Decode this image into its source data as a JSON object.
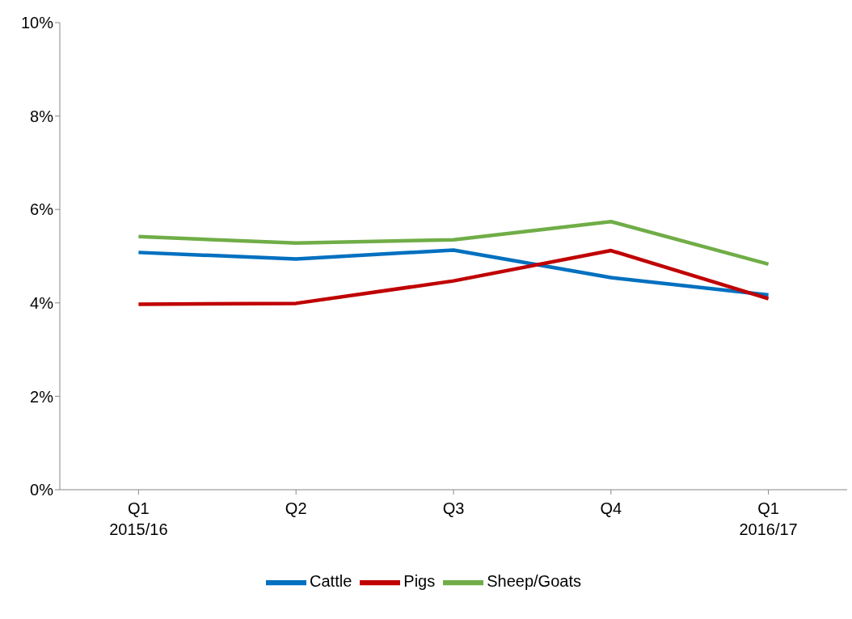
{
  "chart_data": {
    "type": "line",
    "categories": [
      "Q1 2015/16",
      "Q2",
      "Q3",
      "Q4",
      "Q1 2016/17"
    ],
    "series": [
      {
        "name": "Cattle",
        "color": "#0070c0",
        "values": [
          5.08,
          4.94,
          5.13,
          4.54,
          4.17
        ]
      },
      {
        "name": "Sheep/Goats",
        "color": "#70ad47",
        "values": [
          5.42,
          5.28,
          5.35,
          5.74,
          4.83
        ]
      },
      {
        "name": "Pigs",
        "color": "#c00000",
        "values": [
          3.97,
          3.99,
          4.47,
          5.12,
          4.09
        ]
      }
    ],
    "ylim": [
      0,
      10
    ],
    "yticks": [
      {
        "value": 0,
        "label": "0%"
      },
      {
        "value": 2,
        "label": "2%"
      },
      {
        "value": 4,
        "label": "4%"
      },
      {
        "value": 6,
        "label": "6%"
      },
      {
        "value": 8,
        "label": "8%"
      },
      {
        "value": 10,
        "label": "10%"
      }
    ],
    "grid": false,
    "legend": "bottom",
    "marker": "none",
    "line_style": "solid"
  }
}
